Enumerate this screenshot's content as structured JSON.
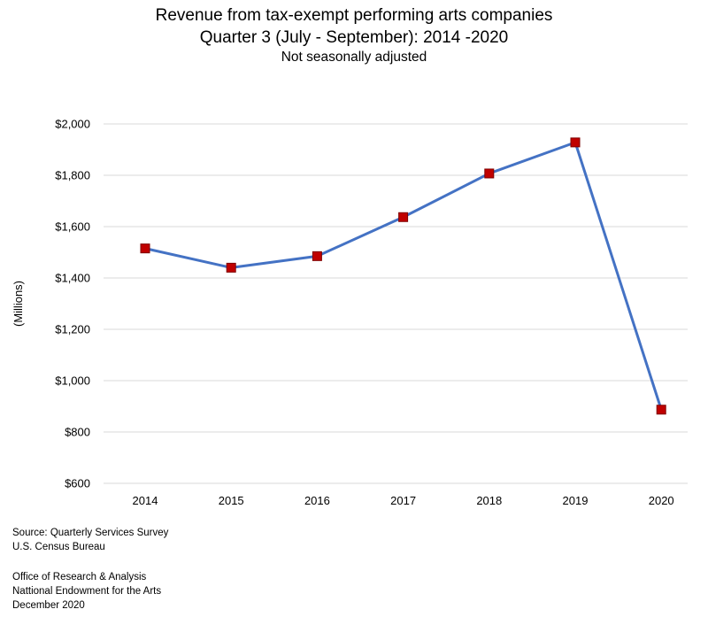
{
  "chart_data": {
    "type": "line",
    "title": "Revenue from tax-exempt performing arts companies",
    "subtitle": "Quarter 3 (July - September): 2014 -2020",
    "note": "Not seasonally adjusted",
    "xlabel": "",
    "ylabel": "(Millions)",
    "categories": [
      "2014",
      "2015",
      "2016",
      "2017",
      "2018",
      "2019",
      "2020"
    ],
    "series": [
      {
        "name": "Revenue",
        "values": [
          1515,
          1440,
          1485,
          1637,
          1807,
          1928,
          887
        ]
      }
    ],
    "ylim": [
      600,
      2000
    ],
    "yticks": [
      600,
      800,
      1000,
      1200,
      1400,
      1600,
      1800,
      2000
    ],
    "ytick_labels": [
      "$600",
      "$800",
      "$1,000",
      "$1,200",
      "$1,400",
      "$1,600",
      "$1,800",
      "$2,000"
    ],
    "grid": true,
    "line_color": "#4472C4",
    "marker_color": "#C00000"
  },
  "footer": {
    "source_1": "Source: Quarterly Services Survey",
    "source_2": "U.S. Census Bureau",
    "office_1": "Office of Research & Analysis",
    "office_2": "Nattional Endowment for the Arts",
    "office_3": "December 2020"
  }
}
